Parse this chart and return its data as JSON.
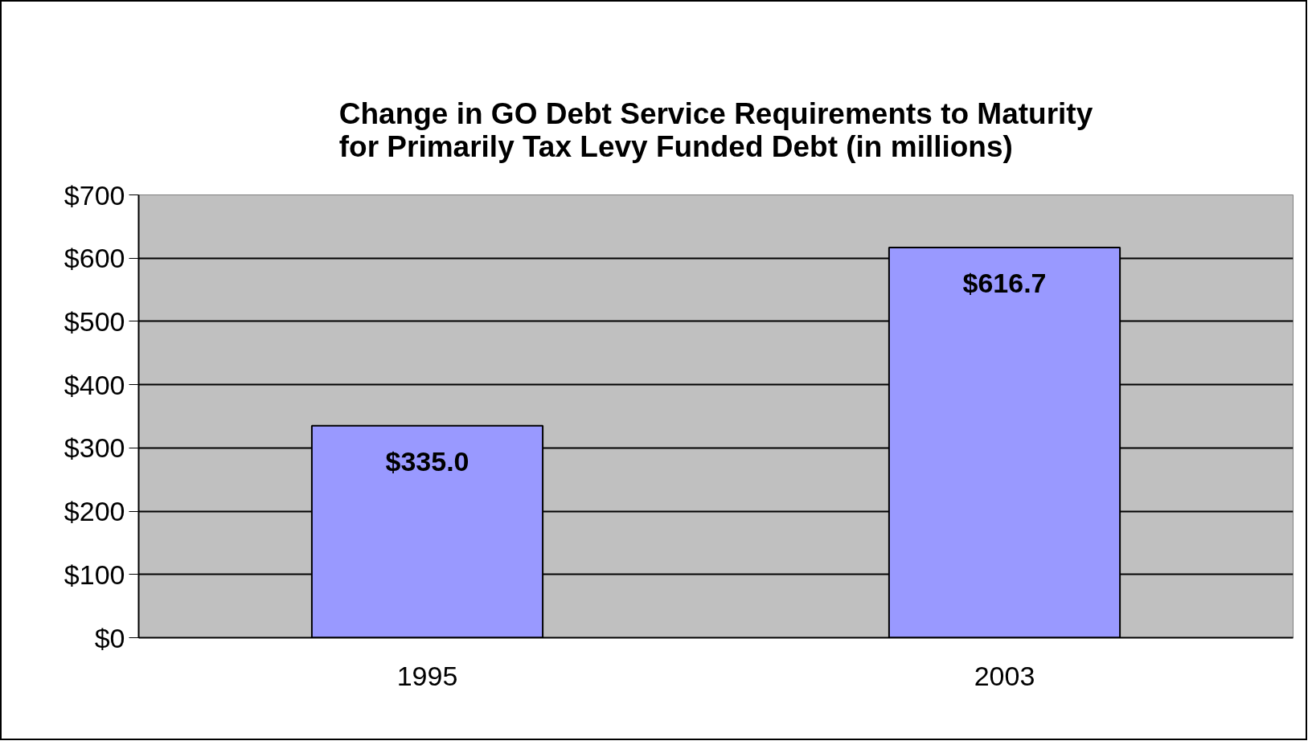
{
  "chart_data": {
    "type": "bar",
    "title": "Change in GO Debt Service Requirements to Maturity\nfor Primarily Tax Levy Funded Debt (in millions)",
    "categories": [
      "1995",
      "2003"
    ],
    "values": [
      335.0,
      616.7
    ],
    "value_labels": [
      "$335.0",
      "$616.7"
    ],
    "color": "#9999ff",
    "ylim": [
      0,
      700
    ],
    "yticks": [
      {
        "value": 0,
        "label": "$0"
      },
      {
        "value": 100,
        "label": "$100"
      },
      {
        "value": 200,
        "label": "$200"
      },
      {
        "value": 300,
        "label": "$300"
      },
      {
        "value": 400,
        "label": "$400"
      },
      {
        "value": 500,
        "label": "$500"
      },
      {
        "value": 600,
        "label": "$600"
      },
      {
        "value": 700,
        "label": "$700"
      }
    ],
    "grid": "y"
  }
}
